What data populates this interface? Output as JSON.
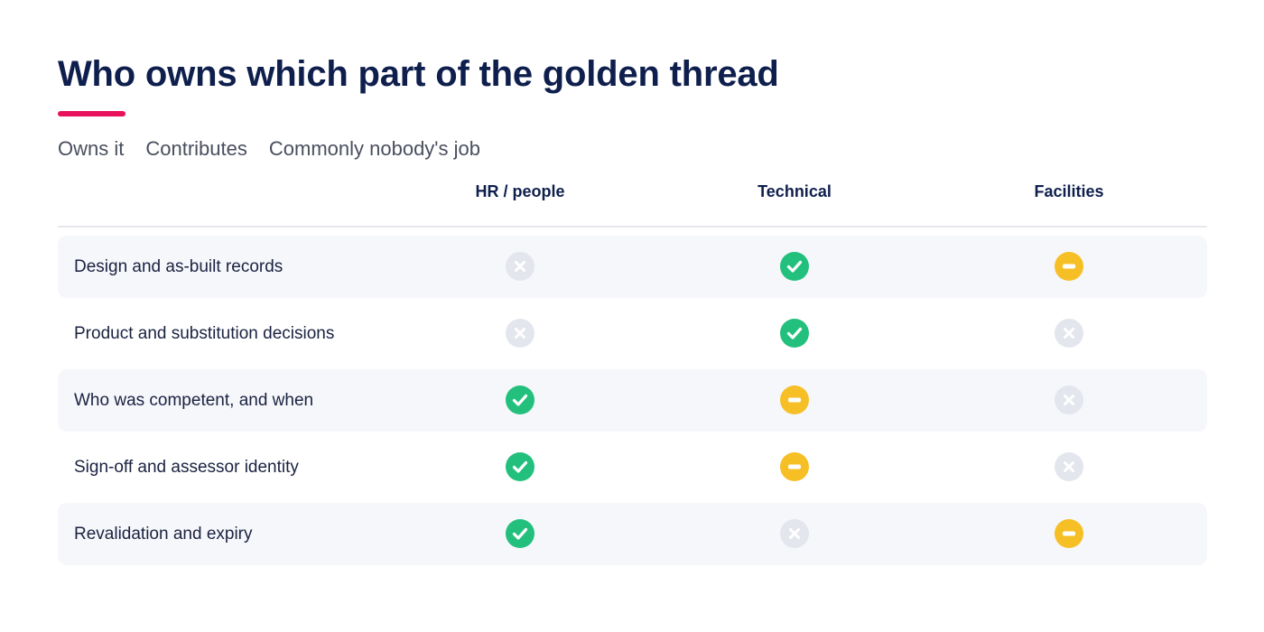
{
  "title": "Who owns which part of the golden thread",
  "accent_color": "#e8115b",
  "legend": [
    "Owns it",
    "Contributes",
    "Commonly nobody's job"
  ],
  "columns": [
    "HR / people",
    "Technical",
    "Facilities"
  ],
  "status_colors": {
    "owns": "#23c07d",
    "contributes": "#f7bf26",
    "nobody": "#e4e6ee"
  },
  "rows": [
    {
      "label": "Design and as-built records",
      "cells": [
        "nobody",
        "owns",
        "contributes"
      ]
    },
    {
      "label": "Product and substitution decisions",
      "cells": [
        "nobody",
        "owns",
        "nobody"
      ]
    },
    {
      "label": "Who was competent, and when",
      "cells": [
        "owns",
        "contributes",
        "nobody"
      ]
    },
    {
      "label": "Sign-off and assessor identity",
      "cells": [
        "owns",
        "contributes",
        "nobody"
      ]
    },
    {
      "label": "Revalidation and expiry",
      "cells": [
        "owns",
        "nobody",
        "contributes"
      ]
    }
  ]
}
